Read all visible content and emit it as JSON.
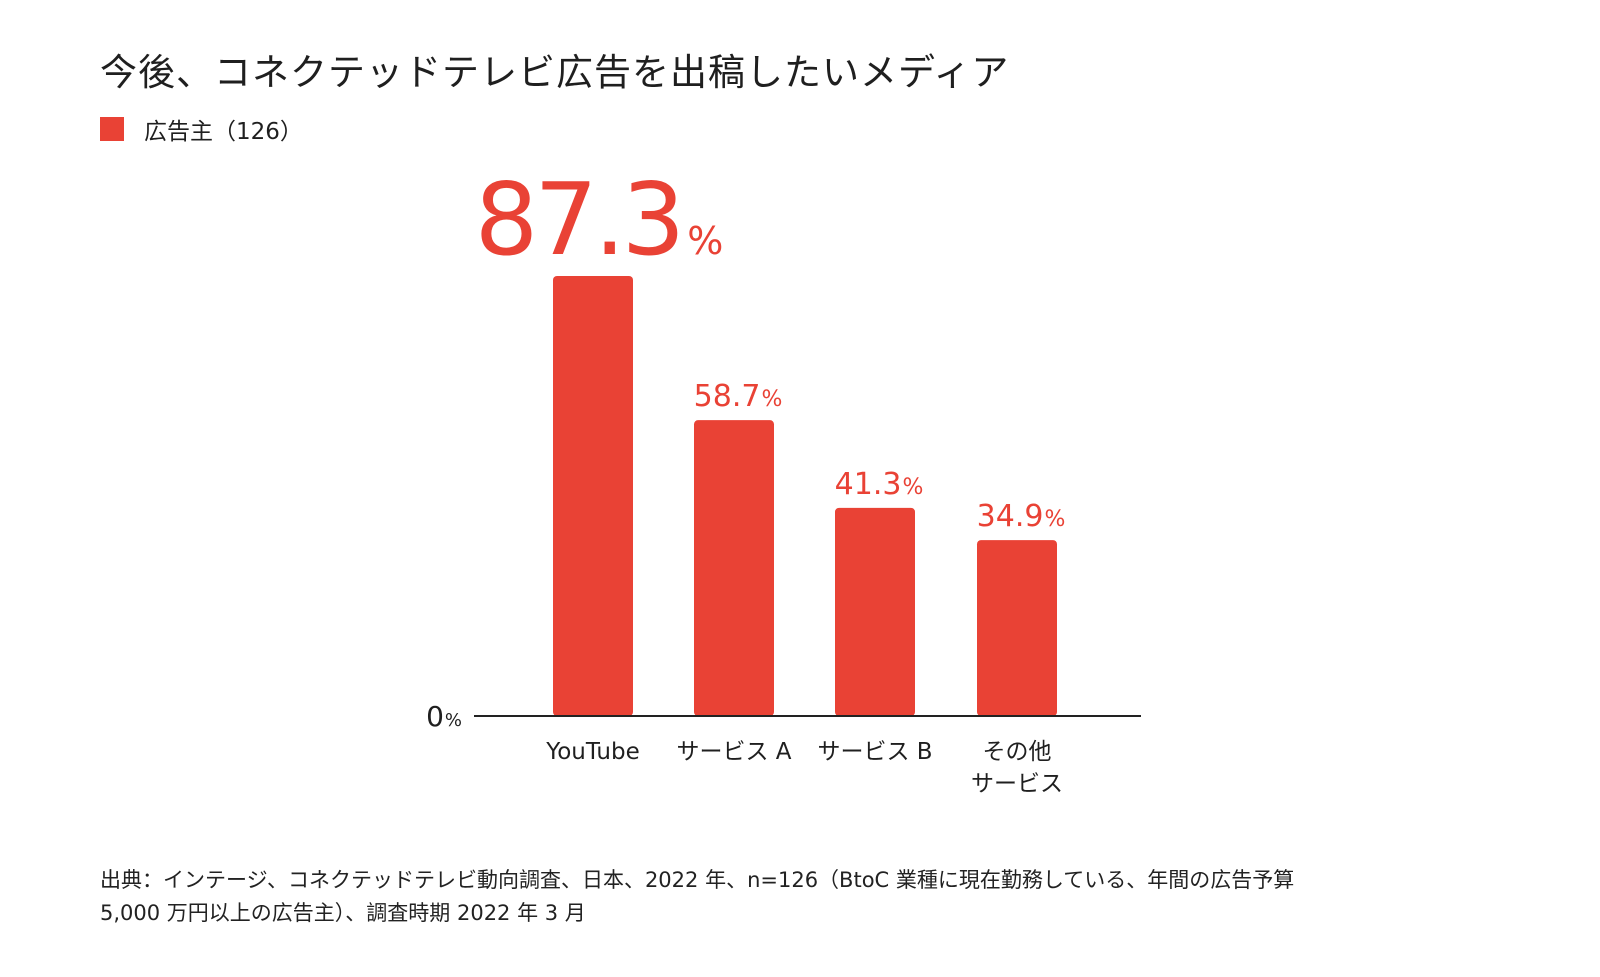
{
  "title": "今後、コネクテッドテレビ広告を出稿したいメディア",
  "legend": {
    "label": "広告主（126）",
    "color": "#E94235"
  },
  "chart_data": {
    "type": "bar",
    "title": "今後、コネクテッドテレビ広告を出稿したいメディア",
    "categories": [
      [
        "YouTube"
      ],
      [
        "サービス A"
      ],
      [
        "サービス B"
      ],
      [
        "その他",
        "サービス"
      ]
    ],
    "series": [
      {
        "name": "広告主（126）",
        "values": [
          87.3,
          58.7,
          41.3,
          34.9
        ],
        "value_labels": [
          "87.3",
          "58.7",
          "41.3",
          "34.9"
        ],
        "color": "#E94235"
      }
    ],
    "unit": "%",
    "baseline_label": "0",
    "ylim": [
      0,
      87.3
    ],
    "grid": false,
    "legend_position": "top-left",
    "highlight_color": "#E94235"
  },
  "footnote": {
    "lines": [
      "出典：インテージ、コネクテッドテレビ動向調査、日本、2022 年、n=126（BtoC 業種に現在勤務している、年間の広告予算",
      "5,000 万円以上の広告主）、調査時期 2022 年 3 月"
    ]
  }
}
